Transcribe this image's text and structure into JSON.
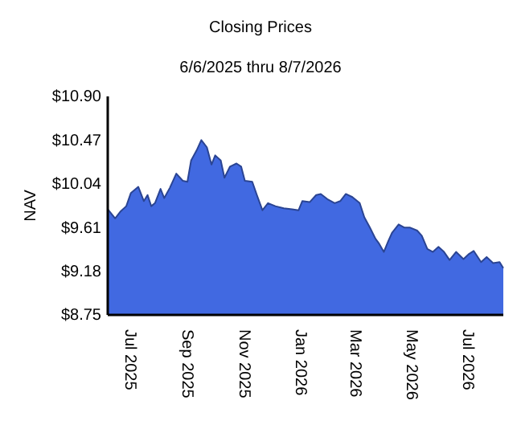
{
  "chart_data": {
    "type": "area",
    "title": "Closing Prices",
    "subtitle": "6/6/2025 thru 8/7/2026",
    "ylabel": "NAV",
    "x": [
      "2025-06-06",
      "2025-06-14",
      "2025-06-20",
      "2025-06-26",
      "2025-07-01",
      "2025-07-09",
      "2025-07-15",
      "2025-07-19",
      "2025-07-23",
      "2025-07-27",
      "2025-08-02",
      "2025-08-06",
      "2025-08-12",
      "2025-08-19",
      "2025-08-26",
      "2025-08-31",
      "2025-09-04",
      "2025-09-10",
      "2025-09-15",
      "2025-09-21",
      "2025-09-26",
      "2025-09-30",
      "2025-10-06",
      "2025-10-10",
      "2025-10-16",
      "2025-10-23",
      "2025-10-28",
      "2025-11-01",
      "2025-11-09",
      "2025-11-14",
      "2025-11-20",
      "2025-11-26",
      "2025-12-04",
      "2025-12-13",
      "2025-12-22",
      "2025-12-29",
      "2026-01-02",
      "2026-01-10",
      "2026-01-17",
      "2026-01-22",
      "2026-01-29",
      "2026-02-06",
      "2026-02-12",
      "2026-02-18",
      "2026-02-25",
      "2026-03-05",
      "2026-03-10",
      "2026-03-16",
      "2026-03-22",
      "2026-03-26",
      "2026-03-31",
      "2026-04-05",
      "2026-04-09",
      "2026-04-16",
      "2026-04-22",
      "2026-04-28",
      "2026-05-06",
      "2026-05-11",
      "2026-05-17",
      "2026-05-23",
      "2026-05-29",
      "2026-06-04",
      "2026-06-10",
      "2026-06-17",
      "2026-06-25",
      "2026-07-01",
      "2026-07-06",
      "2026-07-14",
      "2026-07-20",
      "2026-07-27",
      "2026-08-03",
      "2026-08-07"
    ],
    "series": [
      {
        "color": "#4169e1",
        "values": [
          9.79,
          9.7,
          9.77,
          9.82,
          9.95,
          10.01,
          9.87,
          9.93,
          9.82,
          9.85,
          9.99,
          9.9,
          10.0,
          10.14,
          10.07,
          10.06,
          10.27,
          10.37,
          10.47,
          10.4,
          10.23,
          10.32,
          10.27,
          10.1,
          10.21,
          10.24,
          10.21,
          10.07,
          10.06,
          9.93,
          9.78,
          9.85,
          9.82,
          9.8,
          9.79,
          9.78,
          9.87,
          9.86,
          9.93,
          9.94,
          9.89,
          9.85,
          9.87,
          9.94,
          9.91,
          9.85,
          9.71,
          9.61,
          9.5,
          9.45,
          9.37,
          9.48,
          9.56,
          9.64,
          9.61,
          9.61,
          9.58,
          9.53,
          9.4,
          9.37,
          9.42,
          9.37,
          9.29,
          9.37,
          9.3,
          9.35,
          9.38,
          9.27,
          9.32,
          9.26,
          9.27,
          9.21
        ]
      }
    ],
    "xlim": [
      "2025-06-06",
      "2026-08-07"
    ],
    "xticks": [
      {
        "value": "2025-07-01",
        "label": "Jul 2025"
      },
      {
        "value": "2025-09-01",
        "label": "Sep 2025"
      },
      {
        "value": "2025-11-01",
        "label": "Nov 2025"
      },
      {
        "value": "2026-01-01",
        "label": "Jan 2026"
      },
      {
        "value": "2026-03-01",
        "label": "Mar 2026"
      },
      {
        "value": "2026-05-01",
        "label": "May 2026"
      },
      {
        "value": "2026-07-01",
        "label": "Jul 2026"
      }
    ],
    "ylim": [
      8.75,
      10.9
    ],
    "yticks": [
      {
        "value": 8.75,
        "label": "$8.75"
      },
      {
        "value": 9.18,
        "label": "$9.18"
      },
      {
        "value": 9.61,
        "label": "$9.61"
      },
      {
        "value": 10.04,
        "label": "$10.04"
      },
      {
        "value": 10.47,
        "label": "$10.47"
      },
      {
        "value": 10.9,
        "label": "$10.90"
      }
    ],
    "grid": false
  }
}
